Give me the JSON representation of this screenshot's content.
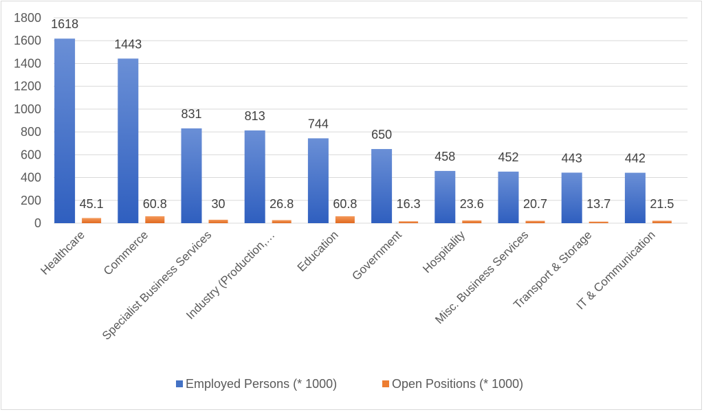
{
  "chart_data": {
    "type": "bar",
    "categories": [
      "Healthcare",
      "Commerce",
      "Specialist Business Services",
      "Industry (Production,…",
      "Education",
      "Government",
      "Hospitality",
      "Misc. Business Services",
      "Transport & Storage",
      "IT & Communication"
    ],
    "series": [
      {
        "name": "Employed Persons (* 1000)",
        "color": "#4472c4",
        "values": [
          1618,
          1443,
          831,
          813,
          744,
          650,
          458,
          452,
          443,
          442
        ]
      },
      {
        "name": "Open Positions (* 1000)",
        "color": "#ed7d31",
        "values": [
          45.1,
          60.8,
          30,
          26.8,
          60.8,
          16.3,
          23.6,
          20.7,
          13.7,
          21.5
        ]
      }
    ],
    "ylim": [
      0,
      1800
    ],
    "yticks": [
      0,
      200,
      400,
      600,
      800,
      1000,
      1200,
      1400,
      1600,
      1800
    ],
    "grid": true,
    "legend": "bottom",
    "title": "",
    "xlabel": "",
    "ylabel": ""
  }
}
